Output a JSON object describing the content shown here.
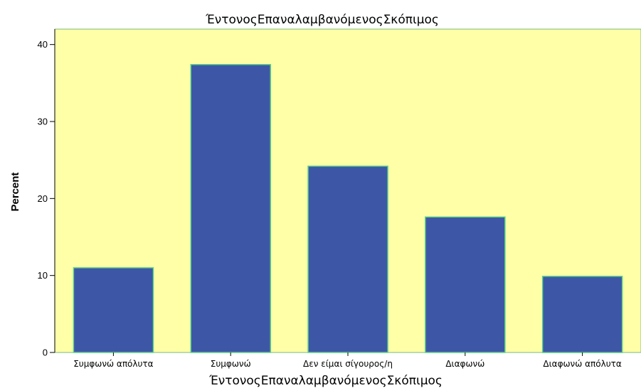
{
  "chart_data": {
    "type": "bar",
    "title": "ΈντονοςΕπαναλαμβανόμενοςΣκόπιμος",
    "xlabel": "ΈντονοςΕπαναλαμβανόμενοςΣκόπιμος",
    "ylabel": "Percent",
    "categories": [
      "Συμφωνώ απόλυτα",
      "Συμφωνώ",
      "Δεν είμαι σίγουρος/η",
      "Διαφωνώ",
      "Διαφωνώ απόλυτα"
    ],
    "values": [
      11.0,
      37.4,
      24.2,
      17.6,
      9.9
    ],
    "ylim": [
      0,
      42
    ],
    "yticks": [
      "0",
      "10",
      "20",
      "30",
      "40"
    ],
    "grid": false,
    "colors": {
      "plot_background": "#ffffa8",
      "bar_fill": "#3d57a6",
      "bar_stroke": "#5fd28a",
      "frame": "#7ab87a"
    }
  }
}
